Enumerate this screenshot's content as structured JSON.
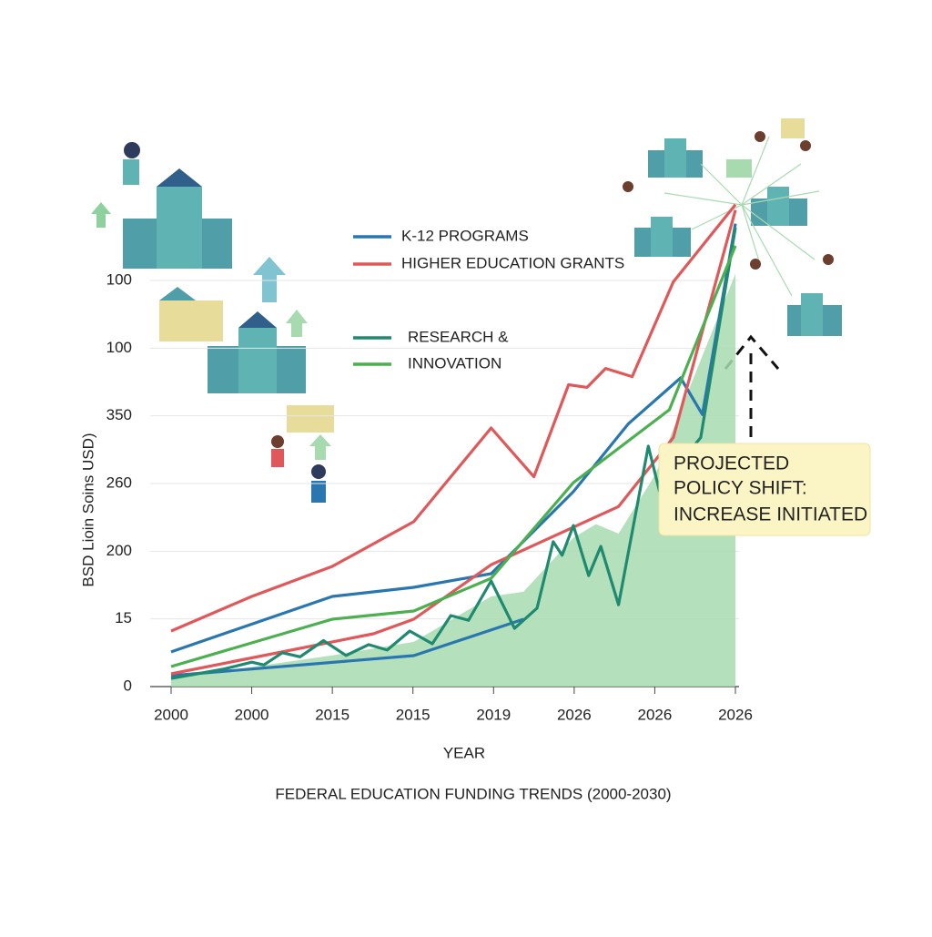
{
  "chart_data": {
    "type": "line",
    "title": "FEDERAL EDUCATION FUNDING TRENDS (2000-2030)",
    "xlabel": "YEAR",
    "ylabel": "BSD Lioin Soins USD)",
    "xlim": [
      0,
      7
    ],
    "xticks": [
      {
        "value": 0,
        "label": "2000"
      },
      {
        "value": 1,
        "label": "2000"
      },
      {
        "value": 2,
        "label": "2015"
      },
      {
        "value": 3,
        "label": "2015"
      },
      {
        "value": 4,
        "label": "2019"
      },
      {
        "value": 5,
        "label": "2026"
      },
      {
        "value": 6,
        "label": "2026"
      },
      {
        "value": 7,
        "label": "2026"
      }
    ],
    "ylim": [
      0,
      360
    ],
    "yticks": [
      0,
      {
        "value": 50,
        "label": "15"
      },
      {
        "value": 100,
        "label": "200"
      },
      {
        "value": 150,
        "label": "260"
      },
      {
        "value": 200,
        "label": "350"
      },
      {
        "value": 250,
        "label": "100"
      },
      {
        "value": 300,
        "label": "100"
      }
    ],
    "grid": true,
    "series": [
      {
        "name": "K-12 PROGRAMS",
        "color": "#2a77b0",
        "x": [
          0,
          3.01,
          4.37,
          null,
          0,
          2.0,
          3.01,
          3.97,
          4.99,
          5.67,
          6.32,
          6.59,
          7
        ],
        "values": [
          8.1,
          22.9,
          49.8,
          null,
          25.6,
          66.6,
          73.3,
          83.4,
          144,
          194,
          228,
          201,
          342
        ]
      },
      {
        "name": "HIGHER EDUCATION GRANTS",
        "color": "#e0585a",
        "x": [
          0,
          1.0,
          2.0,
          3.01,
          3.97,
          4.5,
          4.93,
          5.16,
          5.39,
          5.72,
          6.23,
          7,
          null,
          0,
          2.51,
          3.01,
          3.97,
          5.55,
          6.23,
          7
        ],
        "values": [
          41,
          66.6,
          88.8,
          121.8,
          191,
          155,
          223,
          221,
          235,
          229,
          299,
          356,
          null,
          9.4,
          39,
          49.8,
          90,
          133,
          184,
          352
        ]
      },
      {
        "name": "RESEARCH &",
        "color": "#1f8a70",
        "x": [
          0,
          0.64,
          1.0,
          1.15,
          1.38,
          1.6,
          1.89,
          2.17,
          2.45,
          2.68,
          2.96,
          3.24,
          3.47,
          3.69,
          3.97,
          4.26,
          4.54,
          4.74,
          4.85,
          4.99,
          5.18,
          5.33,
          5.55,
          5.92,
          6.06,
          6.29,
          6.57,
          7
        ],
        "values": [
          6,
          12.8,
          18,
          16,
          25,
          22,
          34,
          23,
          31,
          27,
          41,
          31.6,
          52.5,
          49,
          78,
          43,
          58,
          107,
          97,
          119,
          82,
          103.6,
          60.5,
          177.6,
          144,
          164,
          184,
          339
        ]
      },
      {
        "name": "INNOVATION",
        "color": "#4caf50",
        "x": [
          0,
          2.0,
          3.01,
          3.97,
          4.99,
          6.18,
          7
        ],
        "values": [
          14.8,
          49.8,
          55.8,
          80,
          150.7,
          204.5,
          325.6
        ]
      }
    ],
    "area": {
      "color": "#a8dab0",
      "x": [
        0,
        2.0,
        3.01,
        3.97,
        4.37,
        4.99,
        5.27,
        5.55,
        6.01,
        6.46,
        7
      ],
      "values": [
        6,
        23,
        33,
        66.6,
        70,
        110,
        120,
        113,
        157,
        225,
        305
      ]
    },
    "annotation": [
      "PROJECTED",
      "POLICY SHIFT:",
      "INCREASE INITIATED"
    ]
  }
}
